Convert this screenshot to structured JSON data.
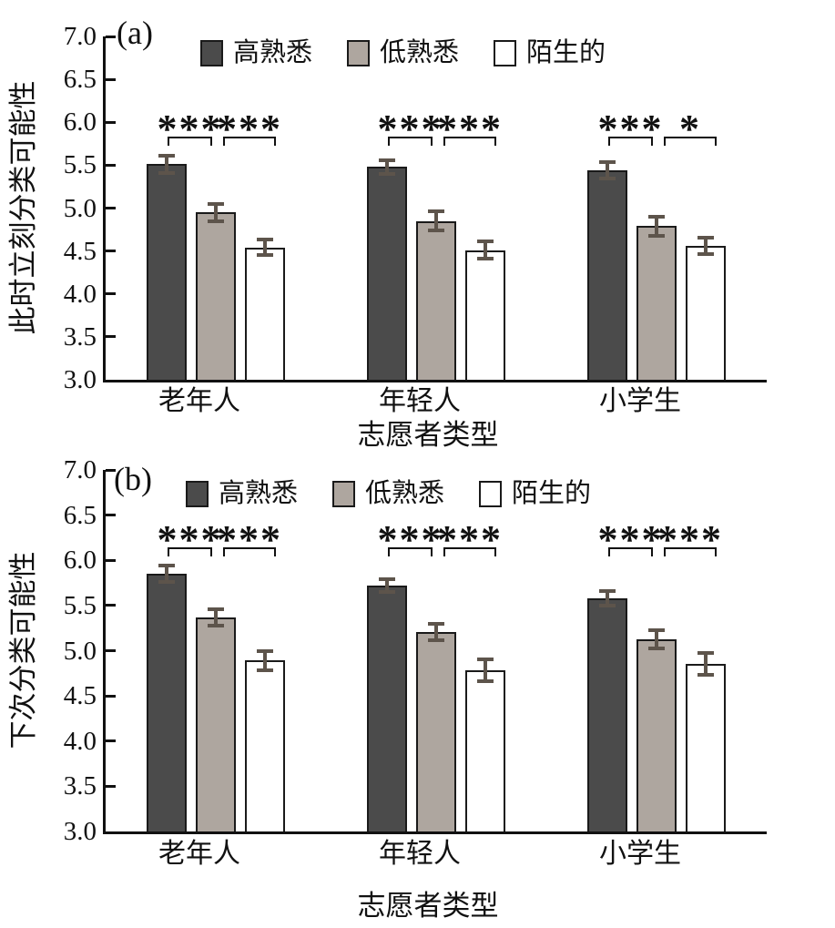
{
  "figure": {
    "background": "#ffffff",
    "text_color": "#111111",
    "axis_color": "#111111"
  },
  "chart_data": [
    {
      "type": "bar",
      "panel_label": "(a)",
      "title": "",
      "ylabel": "此时立刻分类可能性",
      "xlabel": "志愿者类型",
      "ylim": [
        3.0,
        7.0
      ],
      "ytick_step": 0.5,
      "yticks": [
        "3.0",
        "3.5",
        "4.0",
        "4.5",
        "5.0",
        "5.5",
        "6.0",
        "6.5",
        "7.0"
      ],
      "grid": "off",
      "legend_position": "top-inside",
      "categories": [
        "老年人",
        "年轻人",
        "小学生"
      ],
      "series": [
        {
          "name": "高熟悉",
          "color": "#4b4b4b",
          "values": [
            5.51,
            5.48,
            5.44
          ],
          "errors": [
            0.1,
            0.08,
            0.1
          ]
        },
        {
          "name": "低熟悉",
          "color": "#aea69f",
          "values": [
            4.95,
            4.85,
            4.79
          ],
          "errors": [
            0.1,
            0.11,
            0.11
          ]
        },
        {
          "name": "陌生的",
          "color": "#ffffff",
          "values": [
            4.54,
            4.51,
            4.56
          ],
          "errors": [
            0.09,
            0.1,
            0.1
          ]
        }
      ],
      "significance": [
        [
          "***",
          "***"
        ],
        [
          "***",
          "***"
        ],
        [
          "***",
          "*"
        ]
      ],
      "bar_border_color": "#1a1a1a",
      "error_bar_color": "#5d544b"
    },
    {
      "type": "bar",
      "panel_label": "(b)",
      "title": "",
      "ylabel": "下次分类可能性",
      "xlabel": "志愿者类型",
      "ylim": [
        3.0,
        7.0
      ],
      "ytick_step": 0.5,
      "yticks": [
        "3.0",
        "3.5",
        "4.0",
        "4.5",
        "5.0",
        "5.5",
        "6.0",
        "6.5",
        "7.0"
      ],
      "grid": "off",
      "legend_position": "top-inside",
      "categories": [
        "老年人",
        "年轻人",
        "小学生"
      ],
      "series": [
        {
          "name": "高熟悉",
          "color": "#4b4b4b",
          "values": [
            5.85,
            5.72,
            5.58
          ],
          "errors": [
            0.09,
            0.07,
            0.08
          ]
        },
        {
          "name": "低熟悉",
          "color": "#aea69f",
          "values": [
            5.37,
            5.21,
            5.13
          ],
          "errors": [
            0.09,
            0.09,
            0.1
          ]
        },
        {
          "name": "陌生的",
          "color": "#ffffff",
          "values": [
            4.89,
            4.78,
            4.85
          ],
          "errors": [
            0.11,
            0.12,
            0.12
          ]
        }
      ],
      "significance": [
        [
          "***",
          "***"
        ],
        [
          "***",
          "***"
        ],
        [
          "***",
          "***"
        ]
      ],
      "bar_border_color": "#1a1a1a",
      "error_bar_color": "#5d544b"
    }
  ]
}
